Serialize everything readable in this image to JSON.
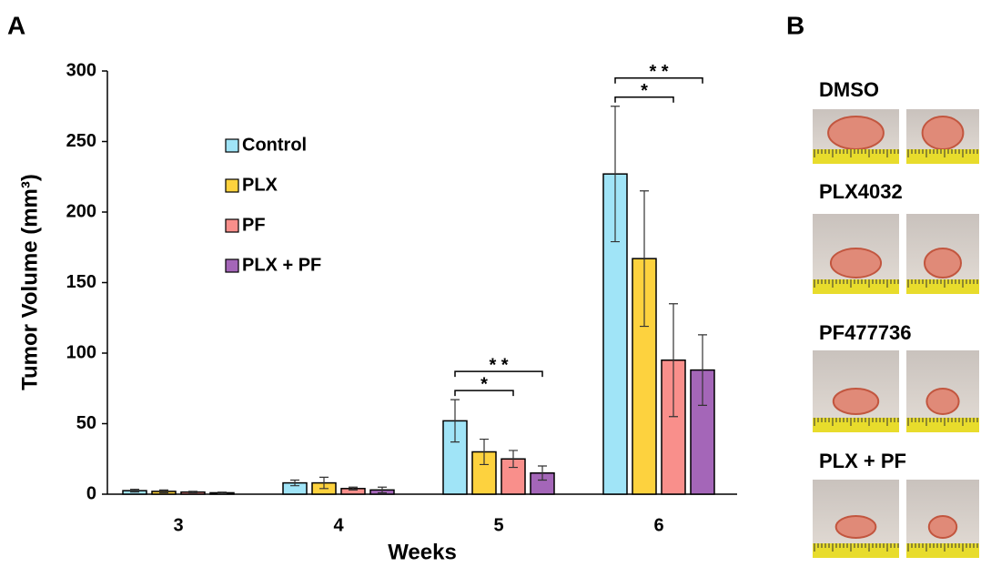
{
  "panel_labels": {
    "a": "A",
    "b": "B"
  },
  "chart_data": {
    "type": "bar",
    "x_label": "Weeks",
    "y_label": "Tumor Volume (mm³)",
    "categories": [
      "3",
      "4",
      "5",
      "6"
    ],
    "series": [
      {
        "name": "Control",
        "color": "#a0e4f7",
        "values": [
          2.5,
          8,
          52,
          227
        ],
        "errors": [
          1,
          2,
          15,
          48
        ]
      },
      {
        "name": "PLX",
        "color": "#fdd23e",
        "values": [
          2,
          8,
          30,
          167
        ],
        "errors": [
          1,
          4,
          9,
          48
        ]
      },
      {
        "name": "PF",
        "color": "#f98f8b",
        "values": [
          1.5,
          4,
          25,
          95
        ],
        "errors": [
          0.5,
          1,
          6,
          40
        ]
      },
      {
        "name": "PLX + PF",
        "color": "#a466b8",
        "values": [
          1,
          3,
          15,
          88
        ],
        "errors": [
          0.5,
          2,
          5,
          25
        ]
      }
    ],
    "ylim": [
      0,
      300
    ],
    "yticks": [
      0,
      50,
      100,
      150,
      200,
      250,
      300
    ],
    "annotations": [
      {
        "text": "*",
        "category": "5",
        "from": "Control",
        "to": "PF"
      },
      {
        "text": "* *",
        "category": "5",
        "from": "Control",
        "to": "PLX + PF"
      },
      {
        "text": "*",
        "category": "6",
        "from": "Control",
        "to": "PF"
      },
      {
        "text": "* *",
        "category": "6",
        "from": "Control",
        "to": "PLX + PF"
      }
    ]
  },
  "photo_conditions": [
    "DMSO",
    "PLX4032",
    "PF477736",
    "PLX + PF"
  ]
}
